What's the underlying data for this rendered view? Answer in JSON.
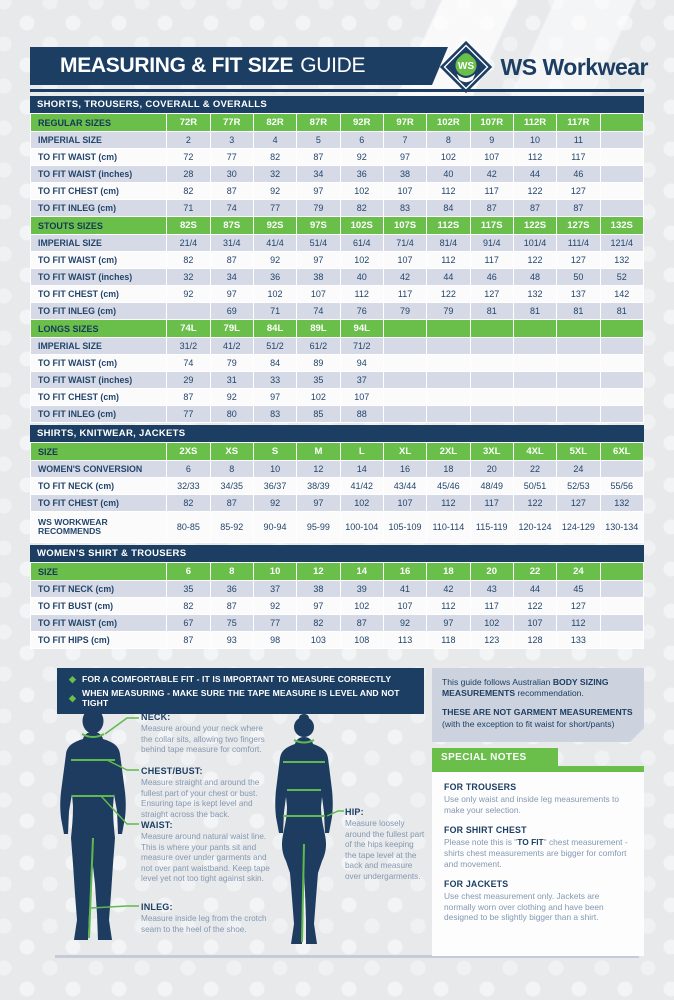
{
  "header": {
    "title_bold": "MEASURING & FIT SIZE",
    "title_light": "GUIDE",
    "brand": "WS Workwear",
    "logo_monogram": "WS"
  },
  "colors": {
    "navy": "#1c3e63",
    "green": "#69bf49",
    "row_alt": "#d5dae6",
    "note_box": "#cdd3de",
    "muted_text": "#8498b0"
  },
  "size_tables": [
    {
      "section": "SHORTS, TROUSERS, COVERALL & OVERALLS",
      "groups": [
        {
          "size_label": "REGULAR SIZES",
          "sizes": [
            "72R",
            "77R",
            "82R",
            "87R",
            "92R",
            "97R",
            "102R",
            "107R",
            "112R",
            "117R",
            ""
          ],
          "rows": [
            {
              "label": "IMPERIAL SIZE",
              "values": [
                "2",
                "3",
                "4",
                "5",
                "6",
                "7",
                "8",
                "9",
                "10",
                "11",
                ""
              ]
            },
            {
              "label": "TO FIT WAIST (cm)",
              "values": [
                "72",
                "77",
                "82",
                "87",
                "92",
                "97",
                "102",
                "107",
                "112",
                "117",
                ""
              ]
            },
            {
              "label": "TO FIT WAIST (inches)",
              "values": [
                "28",
                "30",
                "32",
                "34",
                "36",
                "38",
                "40",
                "42",
                "44",
                "46",
                ""
              ]
            },
            {
              "label": "TO FIT CHEST (cm)",
              "values": [
                "82",
                "87",
                "92",
                "97",
                "102",
                "107",
                "112",
                "117",
                "122",
                "127",
                ""
              ]
            },
            {
              "label": "TO FIT INLEG (cm)",
              "values": [
                "71",
                "74",
                "77",
                "79",
                "82",
                "83",
                "84",
                "87",
                "87",
                "87",
                ""
              ]
            }
          ]
        },
        {
          "size_label": "STOUTS SIZES",
          "sizes": [
            "82S",
            "87S",
            "92S",
            "97S",
            "102S",
            "107S",
            "112S",
            "117S",
            "122S",
            "127S",
            "132S"
          ],
          "rows": [
            {
              "label": "IMPERIAL SIZE",
              "values": [
                "21/4",
                "31/4",
                "41/4",
                "51/4",
                "61/4",
                "71/4",
                "81/4",
                "91/4",
                "101/4",
                "111/4",
                "121/4"
              ]
            },
            {
              "label": "TO FIT WAIST (cm)",
              "values": [
                "82",
                "87",
                "92",
                "97",
                "102",
                "107",
                "112",
                "117",
                "122",
                "127",
                "132"
              ]
            },
            {
              "label": "TO FIT WAIST (inches)",
              "values": [
                "32",
                "34",
                "36",
                "38",
                "40",
                "42",
                "44",
                "46",
                "48",
                "50",
                "52"
              ]
            },
            {
              "label": "TO FIT CHEST (cm)",
              "values": [
                "92",
                "97",
                "102",
                "107",
                "112",
                "117",
                "122",
                "127",
                "132",
                "137",
                "142"
              ]
            },
            {
              "label": "TO FIT INLEG (cm)",
              "values": [
                "",
                "69",
                "71",
                "74",
                "76",
                "79",
                "79",
                "81",
                "81",
                "81",
                "81"
              ]
            }
          ]
        },
        {
          "size_label": "LONGS SIZES",
          "sizes": [
            "74L",
            "79L",
            "84L",
            "89L",
            "94L",
            "",
            "",
            "",
            "",
            "",
            ""
          ],
          "rows": [
            {
              "label": "IMPERIAL SIZE",
              "values": [
                "31/2",
                "41/2",
                "51/2",
                "61/2",
                "71/2",
                "",
                "",
                "",
                "",
                "",
                ""
              ]
            },
            {
              "label": "TO FIT WAIST (cm)",
              "values": [
                "74",
                "79",
                "84",
                "89",
                "94",
                "",
                "",
                "",
                "",
                "",
                ""
              ]
            },
            {
              "label": "TO FIT WAIST (inches)",
              "values": [
                "29",
                "31",
                "33",
                "35",
                "37",
                "",
                "",
                "",
                "",
                "",
                ""
              ]
            },
            {
              "label": "TO FIT CHEST (cm)",
              "values": [
                "87",
                "92",
                "97",
                "102",
                "107",
                "",
                "",
                "",
                "",
                "",
                ""
              ]
            },
            {
              "label": "TO FIT INLEG (cm)",
              "values": [
                "77",
                "80",
                "83",
                "85",
                "88",
                "",
                "",
                "",
                "",
                "",
                ""
              ]
            }
          ]
        }
      ]
    },
    {
      "section": "SHIRTS, KNITWEAR, JACKETS",
      "groups": [
        {
          "size_label": "SIZE",
          "sizes": [
            "2XS",
            "XS",
            "S",
            "M",
            "L",
            "XL",
            "2XL",
            "3XL",
            "4XL",
            "5XL",
            "6XL"
          ],
          "rows": [
            {
              "label": "WOMEN'S CONVERSION",
              "values": [
                "6",
                "8",
                "10",
                "12",
                "14",
                "16",
                "18",
                "20",
                "22",
                "24",
                ""
              ]
            },
            {
              "label": "TO FIT NECK (cm)",
              "values": [
                "32/33",
                "34/35",
                "36/37",
                "38/39",
                "41/42",
                "43/44",
                "45/46",
                "48/49",
                "50/51",
                "52/53",
                "55/56"
              ]
            },
            {
              "label": "TO FIT CHEST (cm)",
              "values": [
                "82",
                "87",
                "92",
                "97",
                "102",
                "107",
                "112",
                "117",
                "122",
                "127",
                "132"
              ]
            },
            {
              "label": "WS WORKWEAR RECOMMENDS",
              "tall": true,
              "values": [
                "80-85",
                "85-92",
                "90-94",
                "95-99",
                "100-104",
                "105-109",
                "110-114",
                "115-119",
                "120-124",
                "124-129",
                "130-134"
              ]
            }
          ]
        }
      ]
    },
    {
      "section": "WOMEN'S SHIRT & TROUSERS",
      "groups": [
        {
          "size_label": "SIZE",
          "sizes": [
            "6",
            "8",
            "10",
            "12",
            "14",
            "16",
            "18",
            "20",
            "22",
            "24",
            ""
          ],
          "rows": [
            {
              "label": "TO FIT NECK (cm)",
              "values": [
                "35",
                "36",
                "37",
                "38",
                "39",
                "41",
                "42",
                "43",
                "44",
                "45",
                ""
              ]
            },
            {
              "label": "TO FIT BUST (cm)",
              "values": [
                "82",
                "87",
                "92",
                "97",
                "102",
                "107",
                "112",
                "117",
                "122",
                "127",
                ""
              ]
            },
            {
              "label": "TO FIT WAIST (cm)",
              "values": [
                "67",
                "75",
                "77",
                "82",
                "87",
                "92",
                "97",
                "102",
                "107",
                "112",
                ""
              ]
            },
            {
              "label": "TO FIT HIPS (cm)",
              "values": [
                "87",
                "93",
                "98",
                "103",
                "108",
                "113",
                "118",
                "123",
                "128",
                "133",
                ""
              ]
            }
          ]
        }
      ]
    }
  ],
  "tips": {
    "lines": [
      "FOR A COMFORTABLE FIT - IT IS IMPORTANT TO MEASURE CORRECTLY",
      "WHEN MEASURING - MAKE SURE THE TAPE MEASURE IS LEVEL AND NOT TIGHT"
    ]
  },
  "measure_guide": {
    "annotations": [
      {
        "label": "NECK:",
        "text": "Measure around your neck where the collar sits, allowing two fingers behind tape measure for comfort."
      },
      {
        "label": "CHEST/BUST:",
        "text": "Measure straight and around the fullest part of your chest or bust. Ensuring tape is kept level and straight across the back."
      },
      {
        "label": "WAIST:",
        "text": "Measure around natural waist line. This is where your pants sit and measure over under garments and not over pant waistband. Keep tape level yet not too tight against skin."
      },
      {
        "label": "INLEG:",
        "text": "Measure inside leg from the crotch seam to the heel of the shoe."
      },
      {
        "label": "HIP:",
        "text": "Measure loosely around the fullest part of the hips keeping the tape level at the back and measure over undergarments."
      }
    ]
  },
  "right_panel": {
    "note": {
      "p1_pre": "This guide follows Australian ",
      "p1_bold": "BODY SIZING MEASUREMENTS",
      "p1_post": " recommendation.",
      "p2_bold": "THESE ARE NOT GARMENT MEASUREMENTS",
      "p2_post": "(with the exception to fit waist for short/pants)"
    },
    "special_notes": {
      "title": "SPECIAL NOTES",
      "items": [
        {
          "heading": "FOR TROUSERS",
          "pre": "Use only waist and inside leg measurements to make your selection.",
          "bold": "",
          "post": ""
        },
        {
          "heading": "FOR SHIRT CHEST",
          "pre": "Please note this is \"",
          "bold": "TO FIT",
          "post": "\" chest measurement - shirts chest measurements are bigger for comfort and movement."
        },
        {
          "heading": "FOR JACKETS",
          "pre": "Use chest measurement only. Jackets are normally worn over clothing and have been designed to be slightly bigger than a shirt.",
          "bold": "",
          "post": ""
        }
      ]
    }
  }
}
